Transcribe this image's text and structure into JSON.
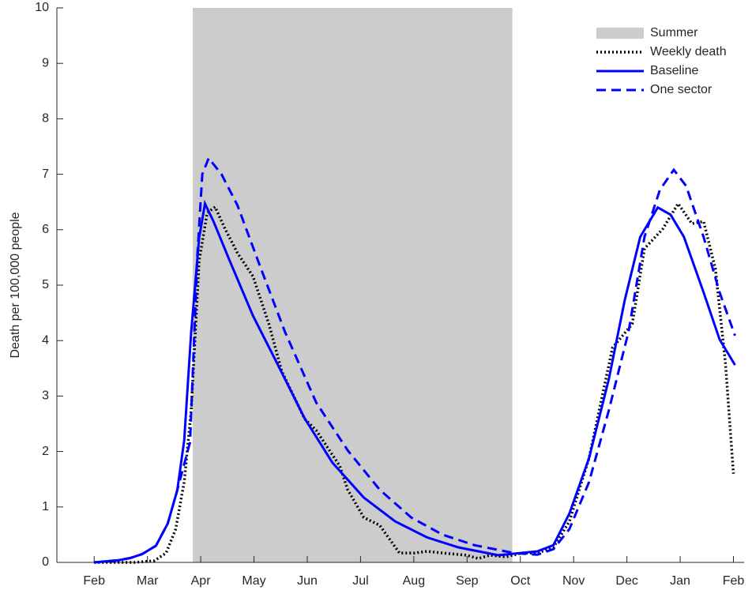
{
  "chart_data": {
    "type": "line",
    "ylabel": "Death per 100,000 people",
    "xlim": [
      -0.7,
      12.2
    ],
    "xticks": [
      {
        "value": 0,
        "label": "Feb"
      },
      {
        "value": 1,
        "label": "Mar"
      },
      {
        "value": 2,
        "label": "Apr"
      },
      {
        "value": 3,
        "label": "May"
      },
      {
        "value": 4,
        "label": "Jun"
      },
      {
        "value": 5,
        "label": "Jul"
      },
      {
        "value": 6,
        "label": "Aug"
      },
      {
        "value": 7,
        "label": "Sep"
      },
      {
        "value": 8,
        "label": "Oct"
      },
      {
        "value": 9,
        "label": "Nov"
      },
      {
        "value": 10,
        "label": "Dec"
      },
      {
        "value": 11,
        "label": "Jan"
      },
      {
        "value": 12,
        "label": "Feb"
      }
    ],
    "ylim": [
      0,
      10
    ],
    "yticks": [
      0,
      1,
      2,
      3,
      4,
      5,
      6,
      7,
      8,
      9,
      10
    ],
    "legend": "upper right",
    "span": {
      "name": "Summer",
      "color": "#cccccc",
      "xrange": [
        1.85,
        7.85
      ]
    },
    "series": [
      {
        "name": "Weekly death",
        "color": "#000000",
        "style": "dotted",
        "x": [
          0,
          0.76,
          1.13,
          1.35,
          1.53,
          1.69,
          1.82,
          1.97,
          2.12,
          2.27,
          2.46,
          2.69,
          2.98,
          3.28,
          3.52,
          3.95,
          4.17,
          4.61,
          4.76,
          5.06,
          5.36,
          5.73,
          6.02,
          6.25,
          6.54,
          6.99,
          7.21,
          7.43,
          7.73,
          8.03,
          8.32,
          8.62,
          8.92,
          9.29,
          9.73,
          10.1,
          10.33,
          10.67,
          10.96,
          11.22,
          11.44,
          11.66,
          11.85,
          12.0
        ],
        "values": [
          0,
          0,
          0.03,
          0.17,
          0.6,
          1.45,
          2.74,
          5.44,
          6.3,
          6.41,
          6.01,
          5.58,
          5.16,
          4.3,
          3.45,
          2.59,
          2.38,
          1.74,
          1.31,
          0.81,
          0.67,
          0.17,
          0.17,
          0.2,
          0.17,
          0.13,
          0.07,
          0.13,
          0.1,
          0.17,
          0.17,
          0.27,
          0.74,
          1.88,
          3.87,
          4.3,
          5.66,
          6.01,
          6.47,
          6.11,
          6.15,
          5.3,
          3.59,
          1.6
        ]
      },
      {
        "name": "Baseline",
        "color": "#0000ff",
        "style": "solid",
        "x": [
          0,
          0.46,
          0.68,
          0.9,
          1.16,
          1.38,
          1.56,
          1.69,
          1.82,
          1.97,
          2.08,
          2.24,
          2.54,
          2.98,
          3.43,
          3.95,
          4.47,
          5.06,
          5.65,
          6.25,
          6.84,
          7.58,
          8.32,
          8.62,
          8.92,
          9.29,
          9.66,
          9.96,
          10.25,
          10.58,
          10.82,
          11.07,
          11.44,
          11.74,
          12.03
        ],
        "values": [
          0,
          0.04,
          0.08,
          0.15,
          0.3,
          0.7,
          1.3,
          2.2,
          4.15,
          5.85,
          6.47,
          6.15,
          5.45,
          4.45,
          3.6,
          2.6,
          1.8,
          1.17,
          0.74,
          0.45,
          0.27,
          0.13,
          0.2,
          0.31,
          0.88,
          1.88,
          3.3,
          4.73,
          5.87,
          6.4,
          6.27,
          5.87,
          4.87,
          4.02,
          3.56
        ]
      },
      {
        "name": "One sector",
        "color": "#0000ff",
        "style": "dashed",
        "x": [
          0,
          0.46,
          0.68,
          0.9,
          1.16,
          1.38,
          1.56,
          1.8,
          1.94,
          2.03,
          2.15,
          2.39,
          2.69,
          3.13,
          3.58,
          4.17,
          4.76,
          5.36,
          5.95,
          6.54,
          7.14,
          7.88,
          8.32,
          8.62,
          8.92,
          9.29,
          9.66,
          10.03,
          10.33,
          10.62,
          10.88,
          11.11,
          11.44,
          11.74,
          12.03
        ],
        "values": [
          0,
          0.04,
          0.08,
          0.15,
          0.3,
          0.7,
          1.3,
          2.17,
          5.58,
          7.0,
          7.29,
          7.0,
          6.44,
          5.3,
          4.16,
          2.88,
          2.02,
          1.31,
          0.81,
          0.5,
          0.31,
          0.17,
          0.14,
          0.24,
          0.6,
          1.45,
          2.74,
          4.16,
          5.87,
          6.72,
          7.08,
          6.79,
          5.87,
          4.87,
          4.09
        ]
      }
    ]
  }
}
